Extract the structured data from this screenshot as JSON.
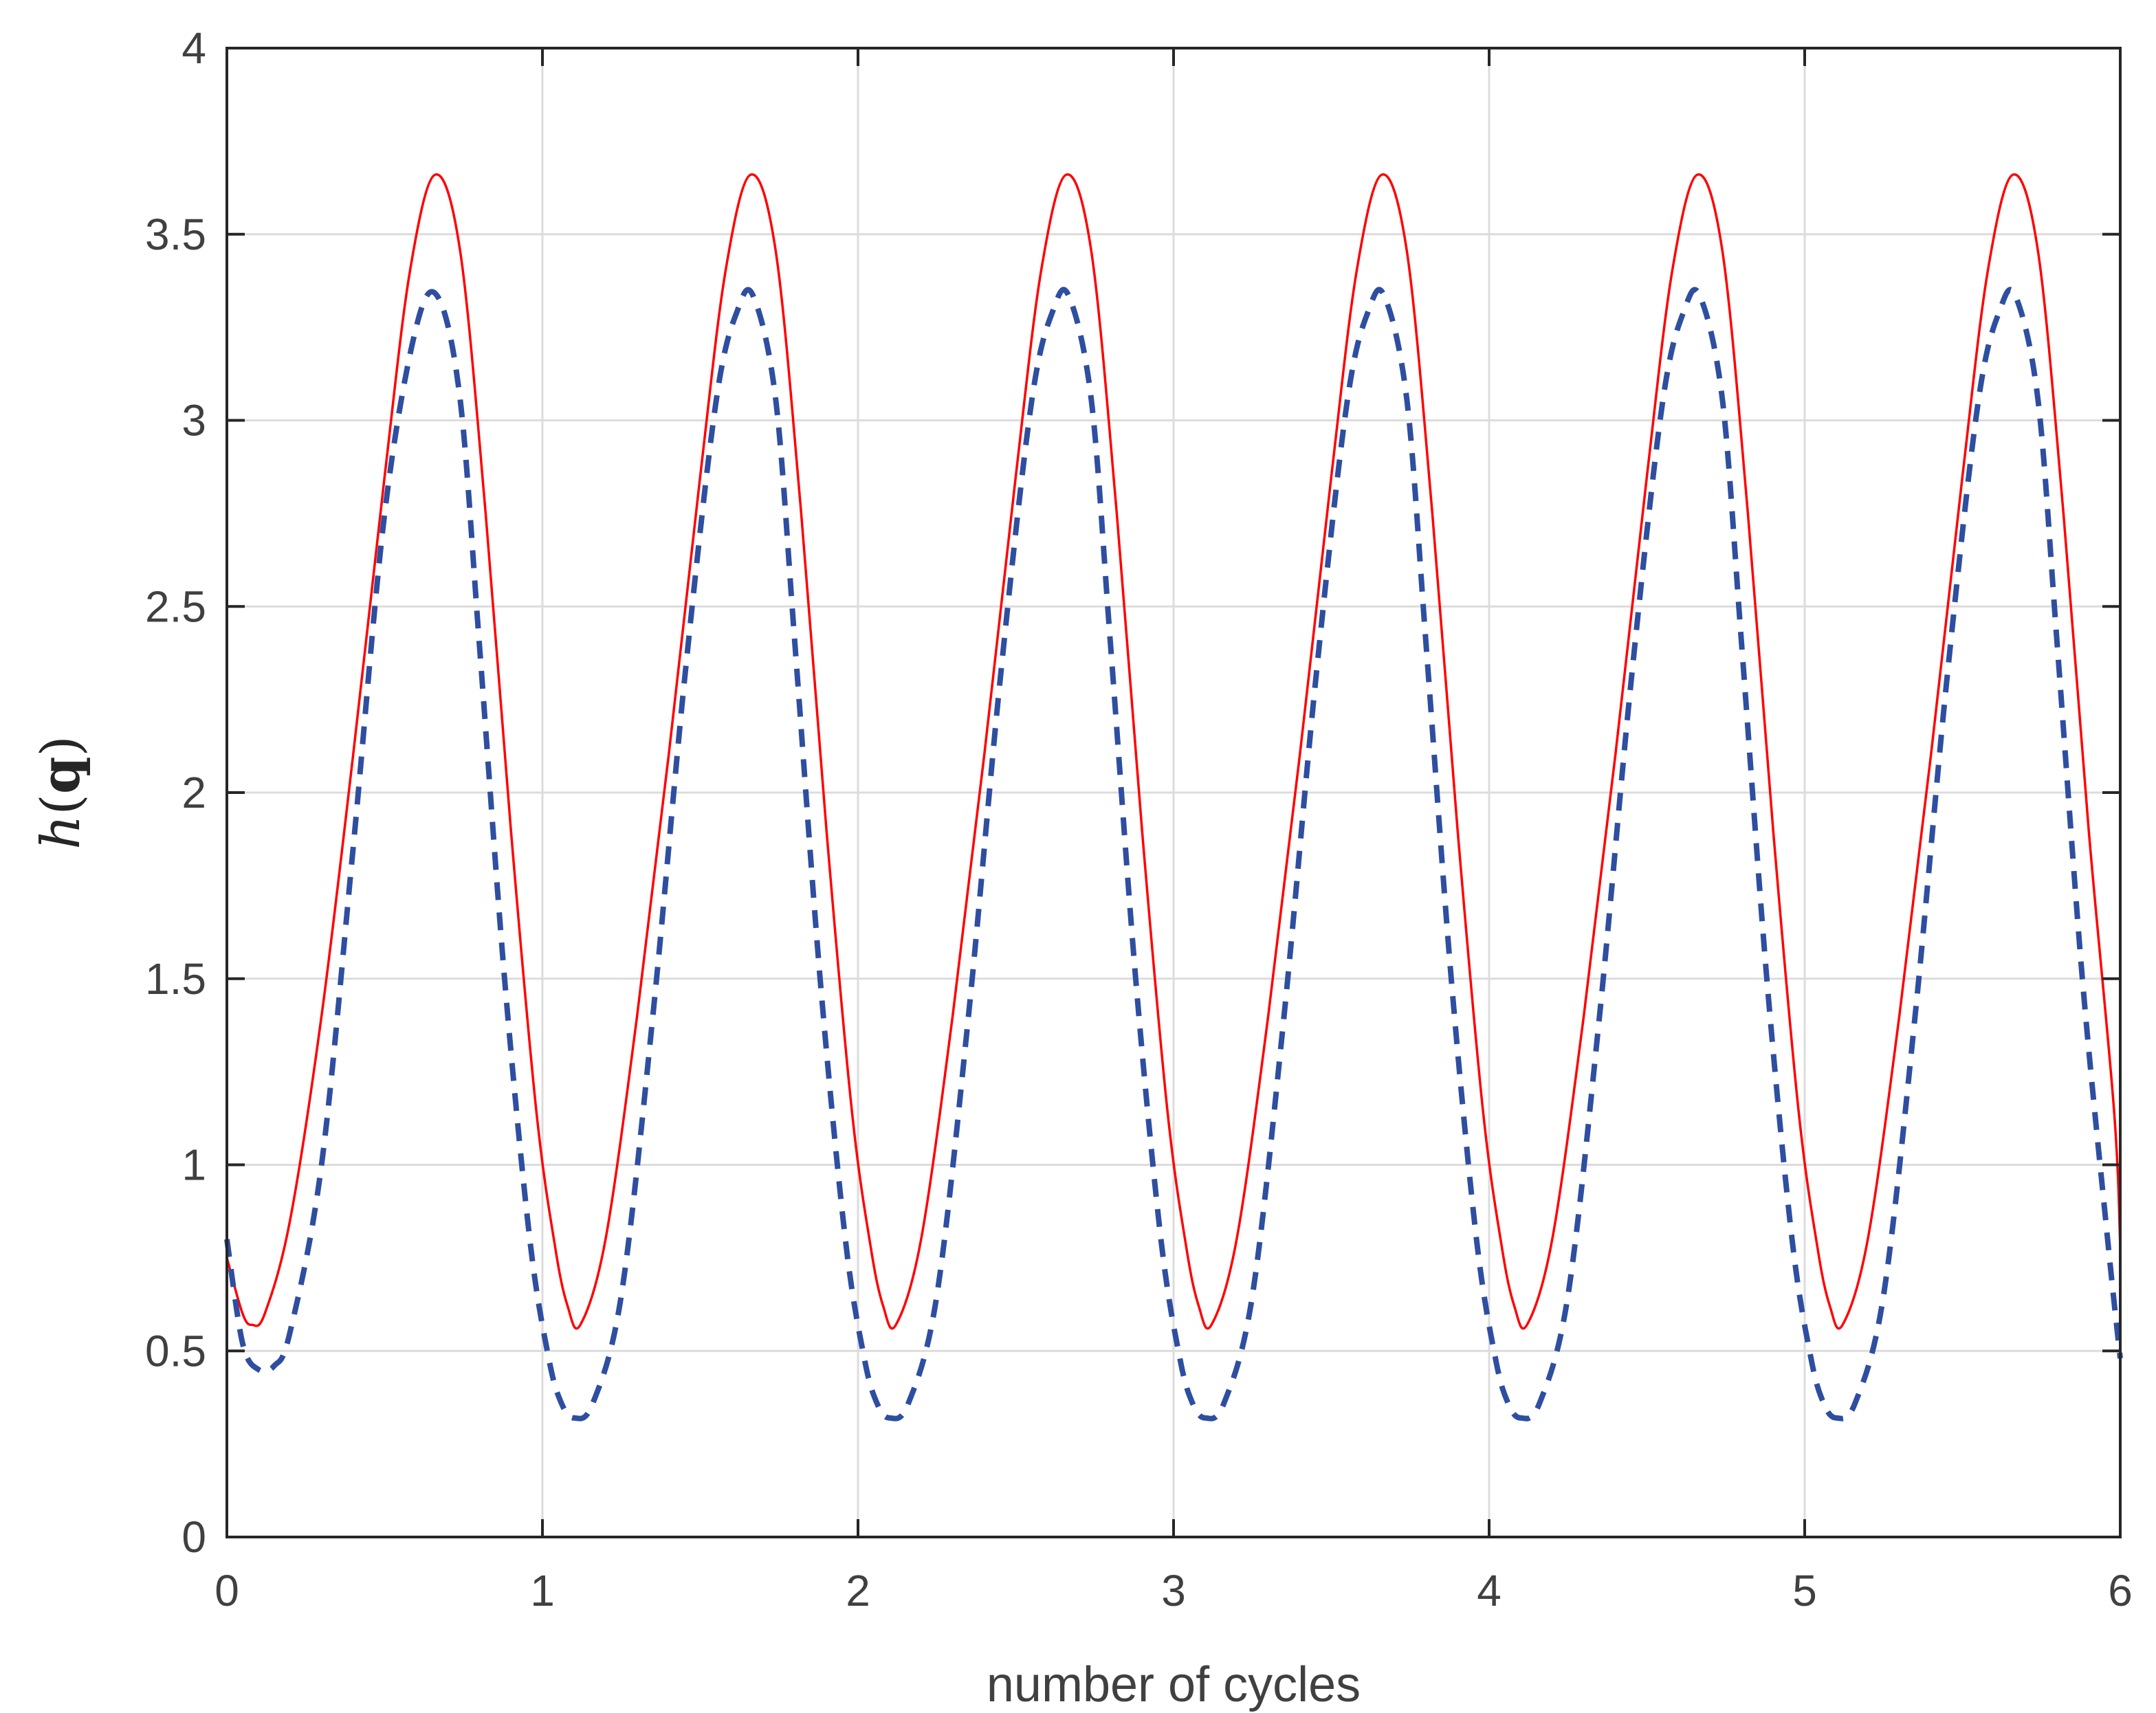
{
  "chart_data": {
    "type": "line",
    "xlabel": "number of cycles",
    "ylabel": {
      "italic": "h",
      "open": "(",
      "bold": "q",
      "close": ")"
    },
    "xlim": [
      0,
      6
    ],
    "ylim": [
      0,
      4
    ],
    "xticks": [
      0,
      1,
      2,
      3,
      4,
      5,
      6
    ],
    "xtick_labels": [
      "0",
      "1",
      "2",
      "3",
      "4",
      "5",
      "6"
    ],
    "yticks": [
      0,
      0.5,
      1,
      1.5,
      2,
      2.5,
      3,
      3.5,
      4
    ],
    "ytick_labels": [
      "0",
      "0.5",
      "1",
      "1.5",
      "2",
      "2.5",
      "3",
      "3.5",
      "4"
    ],
    "grid": true,
    "series": [
      {
        "style": "solid",
        "color": "#ff0000",
        "x": [
          0,
          0.05,
          0.08,
          0.12,
          0.2,
          0.3,
          0.4,
          0.5,
          0.58,
          0.66,
          0.74,
          0.82,
          0.9,
          0.98,
          1.04,
          1.08,
          1.12,
          1.2,
          1.3,
          1.4,
          1.5,
          1.58,
          1.66,
          1.74,
          1.82,
          1.9,
          1.98,
          2.04,
          2.08,
          2.12,
          2.2,
          2.3,
          2.4,
          2.5,
          2.58,
          2.66,
          2.74,
          2.82,
          2.9,
          2.98,
          3.04,
          3.08,
          3.12,
          3.2,
          3.3,
          3.4,
          3.5,
          3.58,
          3.66,
          3.74,
          3.82,
          3.9,
          3.98,
          4.04,
          4.08,
          4.12,
          4.2,
          4.3,
          4.4,
          4.5,
          4.58,
          4.66,
          4.74,
          4.82,
          4.9,
          4.98,
          5.04,
          5.08,
          5.12,
          5.2,
          5.3,
          5.4,
          5.5,
          5.58,
          5.66,
          5.74,
          5.82,
          5.9,
          5.98,
          6.0
        ],
        "y": [
          0.75,
          0.6,
          0.57,
          0.6,
          0.85,
          1.4,
          2.1,
          2.85,
          3.4,
          3.66,
          3.45,
          2.75,
          1.9,
          1.15,
          0.78,
          0.62,
          0.57,
          0.8,
          1.4,
          2.1,
          2.85,
          3.4,
          3.66,
          3.45,
          2.75,
          1.9,
          1.15,
          0.78,
          0.62,
          0.57,
          0.8,
          1.4,
          2.1,
          2.85,
          3.4,
          3.66,
          3.45,
          2.75,
          1.9,
          1.15,
          0.78,
          0.62,
          0.57,
          0.8,
          1.4,
          2.1,
          2.85,
          3.4,
          3.66,
          3.45,
          2.75,
          1.9,
          1.15,
          0.78,
          0.62,
          0.57,
          0.8,
          1.4,
          2.1,
          2.85,
          3.4,
          3.66,
          3.45,
          2.75,
          1.9,
          1.15,
          0.78,
          0.62,
          0.57,
          0.8,
          1.4,
          2.1,
          2.85,
          3.4,
          3.66,
          3.45,
          2.75,
          1.9,
          1.15,
          0.78
        ]
      },
      {
        "style": "dashed",
        "color": "#2e4ea0",
        "x": [
          0,
          0.05,
          0.1,
          0.15,
          0.2,
          0.3,
          0.4,
          0.5,
          0.6,
          0.67,
          0.74,
          0.8,
          0.88,
          0.96,
          1.02,
          1.06,
          1.1,
          1.16,
          1.25,
          1.35,
          1.45,
          1.55,
          1.62,
          1.67,
          1.74,
          1.8,
          1.88,
          1.96,
          2.02,
          2.06,
          2.1,
          2.16,
          2.25,
          2.35,
          2.45,
          2.55,
          2.62,
          2.67,
          2.74,
          2.8,
          2.88,
          2.96,
          3.02,
          3.06,
          3.1,
          3.16,
          3.25,
          3.35,
          3.45,
          3.55,
          3.62,
          3.67,
          3.74,
          3.8,
          3.88,
          3.96,
          4.02,
          4.06,
          4.1,
          4.16,
          4.25,
          4.35,
          4.45,
          4.55,
          4.62,
          4.67,
          4.74,
          4.8,
          4.88,
          4.96,
          5.02,
          5.06,
          5.1,
          5.16,
          5.25,
          5.35,
          5.45,
          5.55,
          5.62,
          5.67,
          5.74,
          5.8,
          5.88,
          5.96,
          6.0
        ],
        "y": [
          0.8,
          0.52,
          0.45,
          0.46,
          0.55,
          1.0,
          1.85,
          2.75,
          3.25,
          3.33,
          3.05,
          2.4,
          1.5,
          0.8,
          0.48,
          0.36,
          0.32,
          0.36,
          0.65,
          1.4,
          2.3,
          3.05,
          3.3,
          3.33,
          3.05,
          2.4,
          1.5,
          0.8,
          0.48,
          0.36,
          0.32,
          0.36,
          0.65,
          1.4,
          2.3,
          3.05,
          3.3,
          3.33,
          3.05,
          2.4,
          1.5,
          0.8,
          0.48,
          0.36,
          0.32,
          0.36,
          0.65,
          1.4,
          2.3,
          3.05,
          3.3,
          3.33,
          3.05,
          2.4,
          1.5,
          0.8,
          0.48,
          0.36,
          0.32,
          0.36,
          0.65,
          1.4,
          2.3,
          3.05,
          3.3,
          3.33,
          3.05,
          2.4,
          1.5,
          0.8,
          0.48,
          0.36,
          0.32,
          0.36,
          0.65,
          1.4,
          2.3,
          3.05,
          3.3,
          3.33,
          3.05,
          2.4,
          1.5,
          0.8,
          0.48
        ]
      }
    ]
  }
}
